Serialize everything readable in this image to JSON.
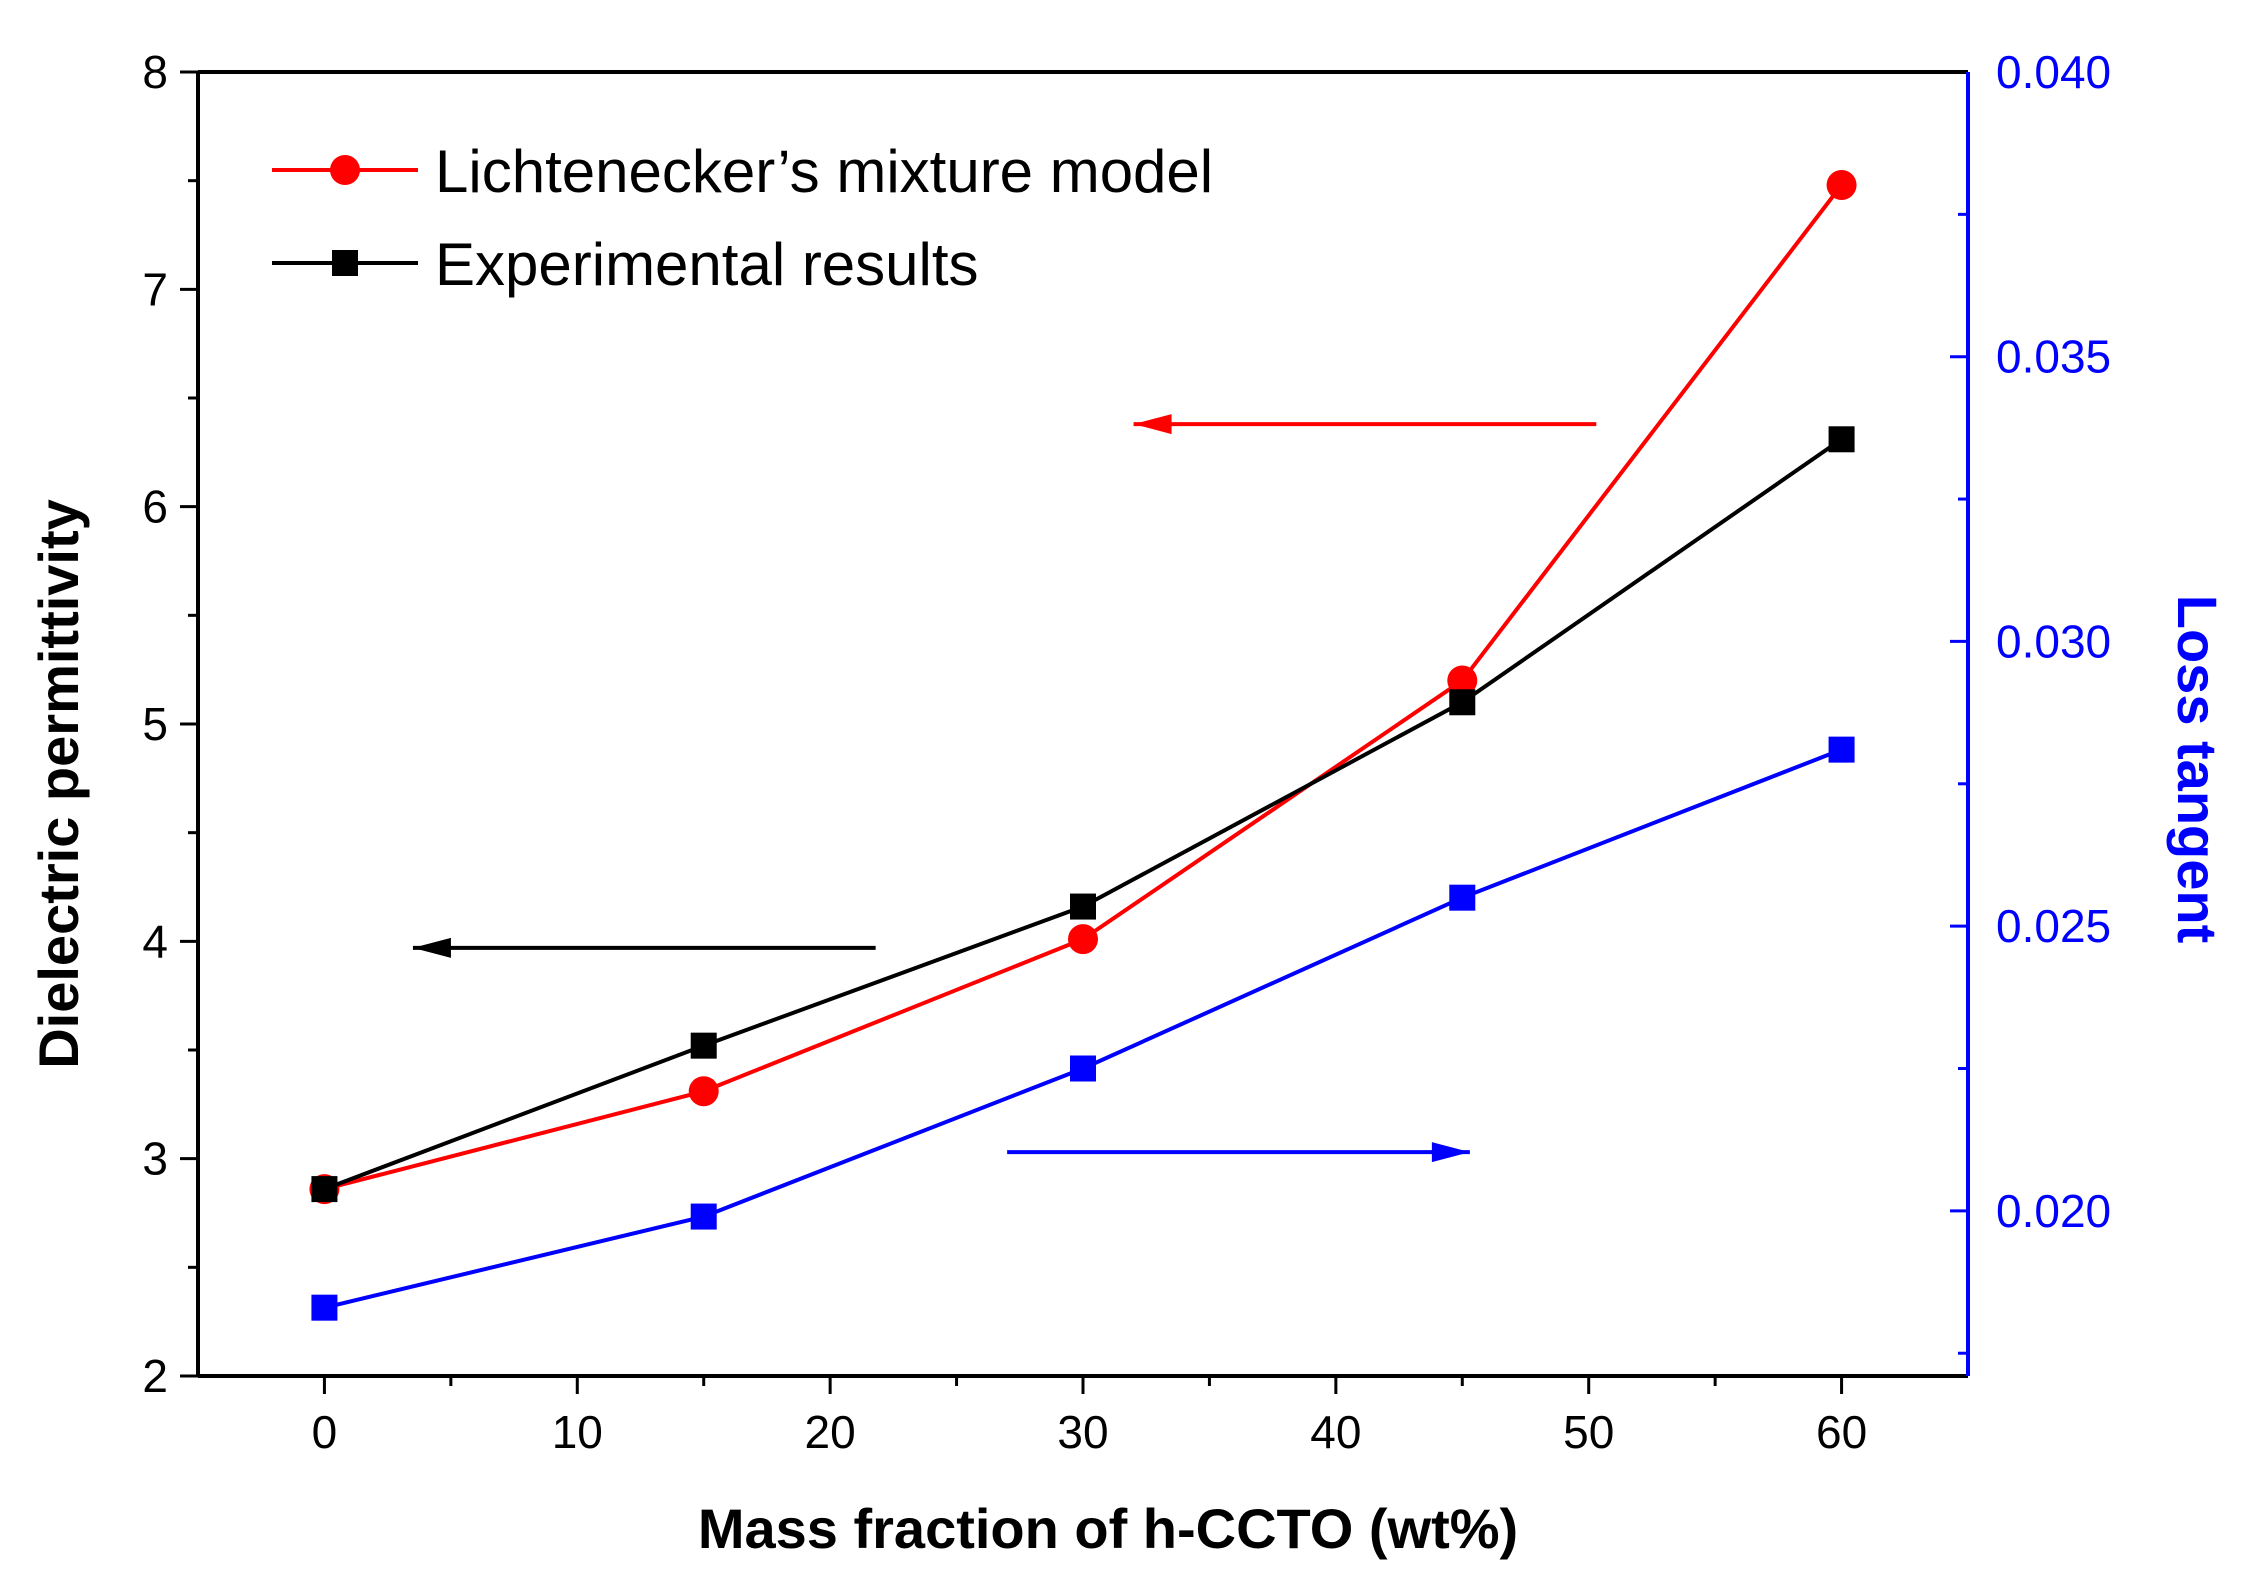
{
  "chart_data": {
    "type": "line",
    "xlabel": "Mass fraction of h-CCTO (wt%)",
    "ylabel_left": "Dielectric permittivity",
    "ylabel_right": "Loss tangent",
    "xlim": [
      -5,
      65
    ],
    "ylim_left": [
      2,
      8
    ],
    "ylim_right": [
      0.0171,
      0.04
    ],
    "x_ticks": [
      0,
      10,
      20,
      30,
      40,
      50,
      60
    ],
    "y_left_ticks": [
      2,
      3,
      4,
      5,
      6,
      7,
      8
    ],
    "y_right_ticks": [
      0.02,
      0.025,
      0.03,
      0.035,
      0.04
    ],
    "y_right_tick_labels": [
      "0.020",
      "0.025",
      "0.030",
      "0.035",
      "0.040"
    ],
    "series": [
      {
        "name": "Lichtenecker’s mixture model",
        "axis": "left",
        "color": "#ff0000",
        "marker": "circle",
        "x": [
          0,
          15,
          30,
          45,
          60
        ],
        "values": [
          2.86,
          3.31,
          4.01,
          5.2,
          7.48
        ]
      },
      {
        "name": "Experimental results",
        "axis": "left",
        "color": "#000000",
        "marker": "square",
        "x": [
          0,
          15,
          30,
          45,
          60
        ],
        "values": [
          2.86,
          3.52,
          4.16,
          5.1,
          6.31
        ]
      },
      {
        "axis": "right",
        "color": "#0000ff",
        "marker": "square",
        "x": [
          0,
          15,
          30,
          45,
          60
        ],
        "values": [
          0.0183,
          0.0199,
          0.0225,
          0.0255,
          0.0281
        ]
      }
    ],
    "annotations": [
      {
        "type": "arrow",
        "color": "#ff0000",
        "direction": "left",
        "points_to": "left-axis",
        "x_from": 50.3,
        "x_to": 32.0,
        "y_left": 6.38
      },
      {
        "type": "arrow",
        "color": "#000000",
        "direction": "left",
        "points_to": "left-axis",
        "x_from": 21.8,
        "x_to": 3.5,
        "y_left": 3.97
      },
      {
        "type": "arrow",
        "color": "#0000ff",
        "direction": "right",
        "points_to": "right-axis",
        "x_from": 27.0,
        "x_to": 45.3,
        "y_left": 3.03
      }
    ],
    "legend_position": "top-left",
    "grid": false
  }
}
